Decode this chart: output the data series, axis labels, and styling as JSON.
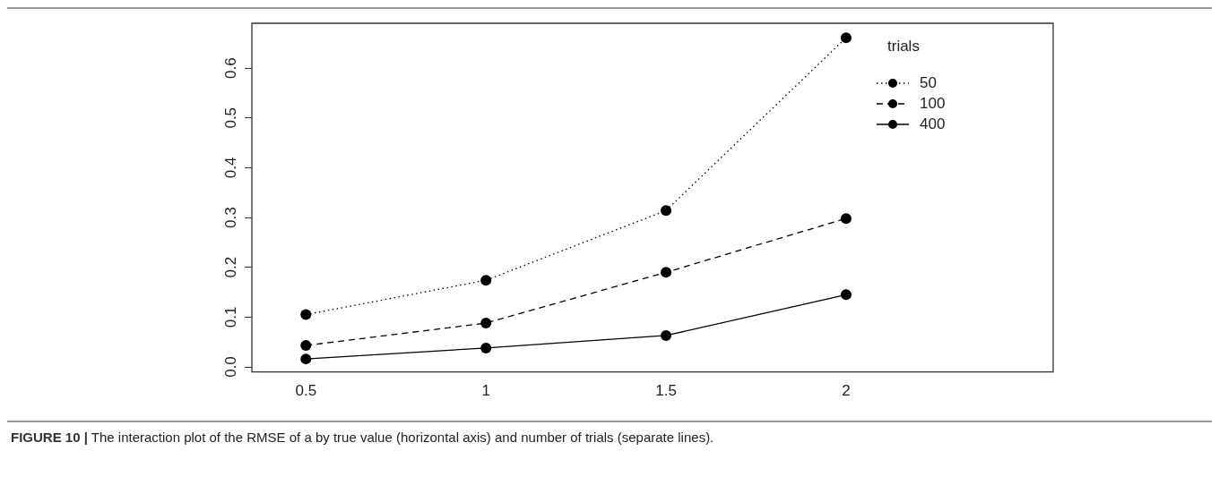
{
  "chart_data": {
    "type": "line",
    "categories": [
      "0.5",
      "1",
      "1.5",
      "2"
    ],
    "series": [
      {
        "name": "50",
        "color": "#000000",
        "line_style": "dotted",
        "values": [
          0.105,
          0.174,
          0.314,
          0.661
        ]
      },
      {
        "name": "100",
        "color": "#000000",
        "line_style": "dashed",
        "values": [
          0.043,
          0.088,
          0.19,
          0.298
        ]
      },
      {
        "name": "400",
        "color": "#000000",
        "line_style": "solid",
        "values": [
          0.016,
          0.038,
          0.063,
          0.145
        ]
      }
    ],
    "ylim": [
      -0.01,
      0.69
    ],
    "yticks": [
      {
        "value": 0,
        "label": "0.0"
      },
      0.1,
      0.2,
      0.3,
      0.4,
      0.5,
      0.6
    ],
    "legend_title": "trials",
    "legend": "top right",
    "grid": false,
    "marker": "circle",
    "annotations": [
      "FIGURE 10 | The interaction plot of the RMSE of a by true value (horizontal axis) and number of trials (separate lines)."
    ]
  }
}
